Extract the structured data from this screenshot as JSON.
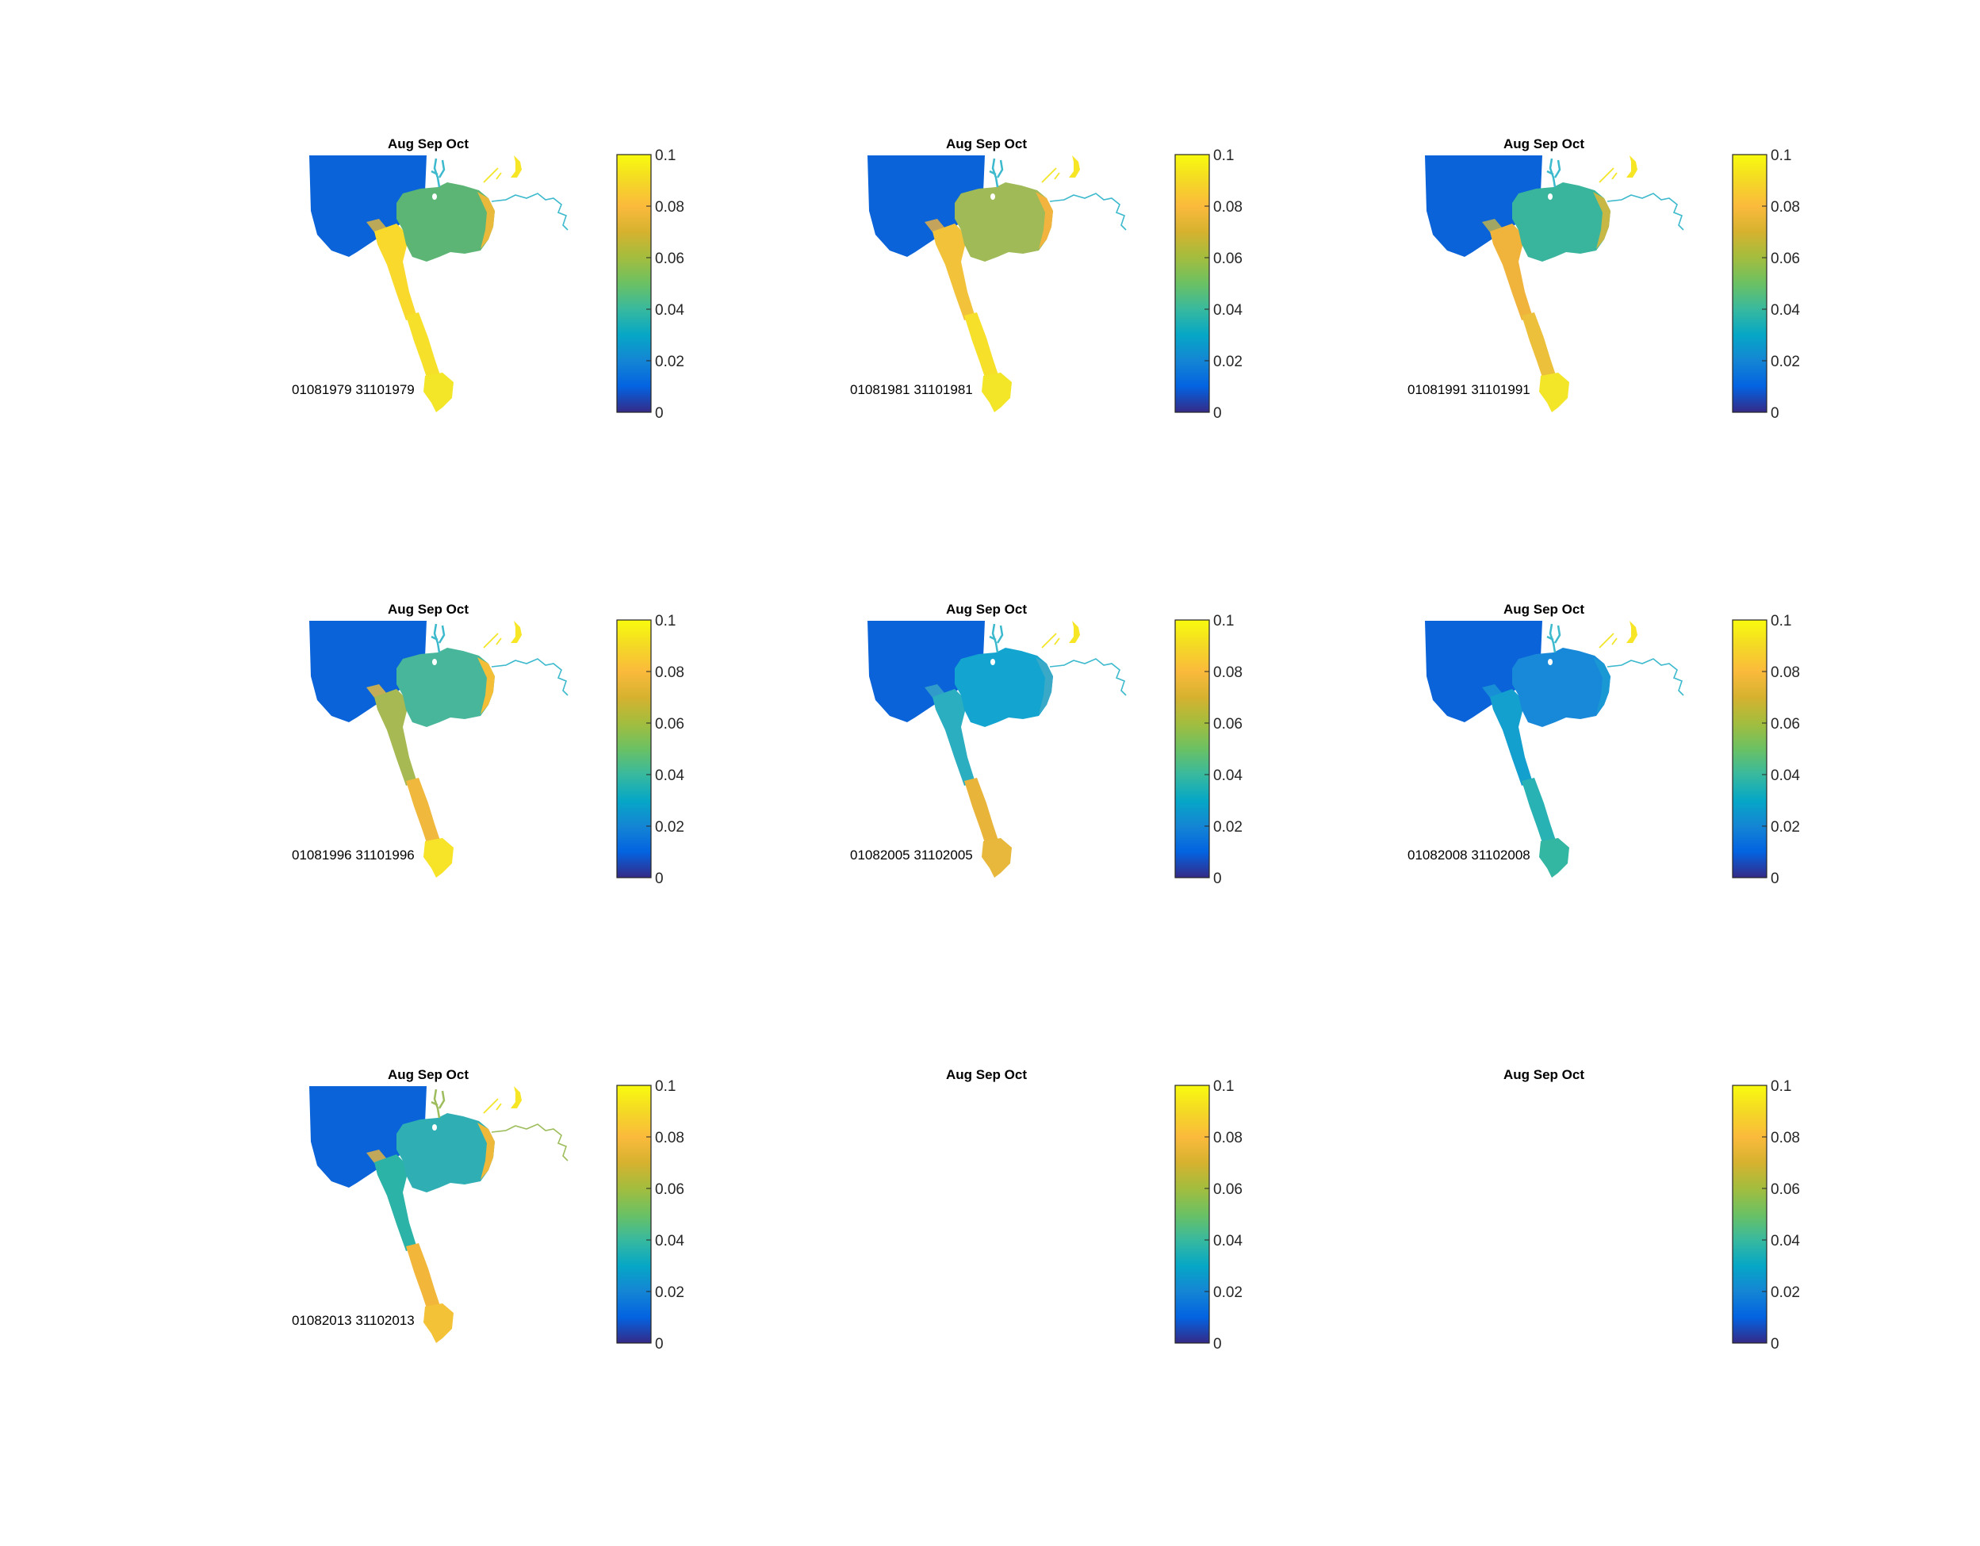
{
  "figure": {
    "colormap": "parula",
    "color_range": [
      0,
      0.1
    ],
    "colorbar_ticks": [
      "0",
      "0.02",
      "0.04",
      "0.06",
      "0.08",
      "0.1"
    ],
    "panels": [
      {
        "title": "Aug Sep Oct",
        "label": "01081979 31101979",
        "has_map": true,
        "colors": {
          "sea": "#0a63d8",
          "lake": "#5cb574",
          "lake_edge": "#e8b93a",
          "channel": "#f8d92c",
          "channel_south": "#f7e02a",
          "delta": "#f3e628",
          "river": "#3cb9cd"
        }
      },
      {
        "title": "Aug Sep Oct",
        "label": "01081981 31101981",
        "has_map": true,
        "colors": {
          "sea": "#0a63d8",
          "lake": "#9fba56",
          "lake_edge": "#f2b43e",
          "channel": "#f2c33a",
          "channel_south": "#f7e02a",
          "delta": "#f3e628",
          "river": "#3cb9cd"
        }
      },
      {
        "title": "Aug Sep Oct",
        "label": "01081991 31101991",
        "has_map": true,
        "colors": {
          "sea": "#0a63d8",
          "lake": "#3ab59d",
          "lake_edge": "#c7b845",
          "channel": "#f0b43c",
          "channel_south": "#ecc03a",
          "delta": "#f3e628",
          "river": "#3cb9cd"
        }
      },
      {
        "title": "Aug Sep Oct",
        "label": "01081996 31101996",
        "has_map": true,
        "colors": {
          "sea": "#0a63d8",
          "lake": "#48b69a",
          "lake_edge": "#f4be36",
          "channel": "#a6b952",
          "channel_south": "#f0b83c",
          "delta": "#f7e428",
          "river": "#3cb9cd"
        }
      },
      {
        "title": "Aug Sep Oct",
        "label": "01082005 31102005",
        "has_map": true,
        "colors": {
          "sea": "#0a63d8",
          "lake": "#13a5cf",
          "lake_edge": "#3aa9c8",
          "channel": "#2aaec0",
          "channel_south": "#e9b43a",
          "delta": "#e7b83c",
          "river": "#3cb9cd"
        }
      },
      {
        "title": "Aug Sep Oct",
        "label": "01082008 31102008",
        "has_map": true,
        "colors": {
          "sea": "#0a63d8",
          "lake": "#1889d9",
          "lake_edge": "#1a98d4",
          "channel": "#14a0cf",
          "channel_south": "#29b2b3",
          "delta": "#33b6a2",
          "river": "#3cb9cd"
        }
      },
      {
        "title": "Aug Sep Oct",
        "label": "01082013 31102013",
        "has_map": true,
        "colors": {
          "sea": "#0a63d8",
          "lake": "#2fafb3",
          "lake_edge": "#eeb83a",
          "channel": "#2bb3a8",
          "channel_south": "#f2b63a",
          "delta": "#f4c236",
          "river": "#9dbd5c"
        }
      },
      {
        "title": "Aug Sep Oct",
        "label": "",
        "has_map": false,
        "colors": {}
      },
      {
        "title": "Aug Sep Oct",
        "label": "",
        "has_map": false,
        "colors": {}
      }
    ]
  }
}
